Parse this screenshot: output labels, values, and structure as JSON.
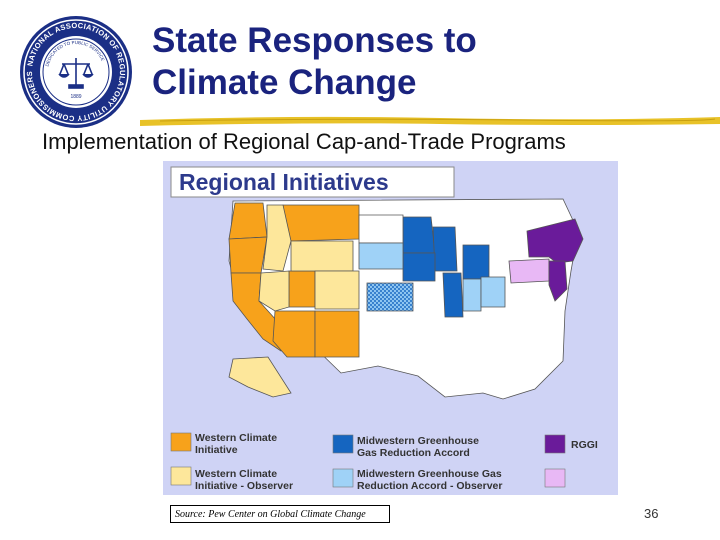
{
  "slide": {
    "title_line1": "State Responses to",
    "title_line2": "Climate Change",
    "subtitle": "Implementation of Regional Cap-and-Trade Programs",
    "page_number": "36"
  },
  "seal": {
    "ring_text": "NATIONAL ASSOCIATION OF REGULATORY UTILITY COMMISSIONERS",
    "motto": "DEDICATED TO PUBLIC SERVICE",
    "year": "1889"
  },
  "map": {
    "header": "Regional Initiatives",
    "legend": {
      "wci": {
        "line1": "Western Climate",
        "line2": "Initiative",
        "color": "#f7a21b"
      },
      "wci_obs": {
        "line1": "Western Climate",
        "line2": "Initiative - Observer",
        "color": "#fde79b"
      },
      "mgga": {
        "line1": "Midwestern Greenhouse",
        "line2": "Gas Reduction Accord",
        "color": "#1565c0"
      },
      "mgga_obs": {
        "line1": "Midwestern Greenhouse Gas",
        "line2": "Reduction Accord - Observer",
        "color": "#9fd2f7"
      },
      "rggi": {
        "line1": "RGGI",
        "color": "#6a1b9a"
      },
      "rggi_obs": {
        "color": "#e8b8f5"
      }
    },
    "colors": {
      "background": "#cfd3f5",
      "nonmember": "#ffffff",
      "border": "#555555",
      "header_bg": "#ffffff",
      "header_text": "#2d3a8c"
    }
  },
  "source": "Source: Pew Center on Global Climate Change",
  "colors": {
    "title": "#1a237e",
    "underline": "#e8c228"
  }
}
